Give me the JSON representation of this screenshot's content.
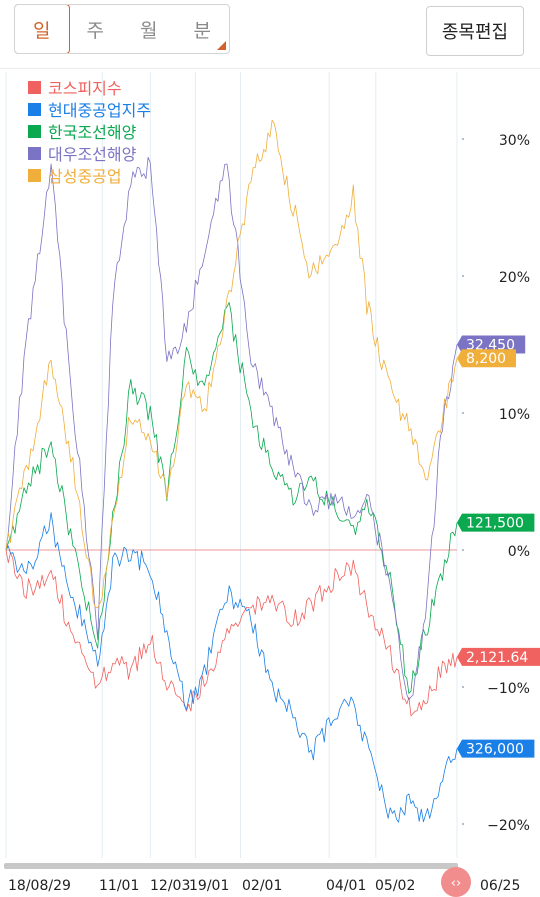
{
  "tabs": [
    {
      "label": "일",
      "active": true
    },
    {
      "label": "주",
      "active": false
    },
    {
      "label": "월",
      "active": false
    },
    {
      "label": "분",
      "active": false,
      "has_corner": true
    }
  ],
  "edit_button_label": "종목편집",
  "legend": [
    {
      "name": "코스피지수",
      "color": "#f0625f"
    },
    {
      "name": "현대중공업지주",
      "color": "#1a7fe6"
    },
    {
      "name": "한국조선해양",
      "color": "#0aa84f"
    },
    {
      "name": "대우조선해양",
      "color": "#7b74c4"
    },
    {
      "name": "삼성중공업",
      "color": "#f0ae3a"
    }
  ],
  "scroll_handle_icon": "chevron-left-right-icon",
  "chart_data": {
    "type": "line",
    "y_unit": "%",
    "y_ticks": [
      "30%",
      "20%",
      "10%",
      "0%",
      "−10%",
      "−20%"
    ],
    "y_tick_values": [
      30,
      20,
      10,
      0,
      -10,
      -20
    ],
    "ylim": [
      -22.5,
      34
    ],
    "x_ticks": [
      {
        "label": "18/08/29",
        "date": "2018-08-29"
      },
      {
        "label": "11/01",
        "date": "2018-11-01"
      },
      {
        "label": "12/03",
        "date": "2018-12-03"
      },
      {
        "label": "19/01",
        "date": "2019-01-02"
      },
      {
        "label": "02/01",
        "date": "2019-02-01"
      },
      {
        "label": "04/01",
        "date": "2019-04-01"
      },
      {
        "label": "05/02",
        "date": "2019-05-02"
      },
      {
        "label": "06/25",
        "date": "2019-06-25"
      }
    ],
    "xlim": [
      "2018-08-29",
      "2019-06-25"
    ],
    "baseline": 0,
    "series": [
      {
        "name": "코스피지수",
        "color": "#f0625f",
        "end_label": "2,121.64",
        "points": [
          [
            "2018-08-29",
            0
          ],
          [
            "2018-09-10",
            -3
          ],
          [
            "2018-09-28",
            -1.5
          ],
          [
            "2018-10-11",
            -6
          ],
          [
            "2018-10-29",
            -10
          ],
          [
            "2018-11-08",
            -8
          ],
          [
            "2018-11-20",
            -9
          ],
          [
            "2018-12-03",
            -6.5
          ],
          [
            "2018-12-14",
            -9.5
          ],
          [
            "2018-12-27",
            -11.5
          ],
          [
            "2019-01-08",
            -9.5
          ],
          [
            "2019-01-23",
            -6.5
          ],
          [
            "2019-02-08",
            -4
          ],
          [
            "2019-02-22",
            -3.5
          ],
          [
            "2019-03-08",
            -5
          ],
          [
            "2019-03-20",
            -4
          ],
          [
            "2019-04-05",
            -2
          ],
          [
            "2019-04-17",
            -1.5
          ],
          [
            "2019-04-26",
            -4
          ],
          [
            "2019-05-13",
            -8
          ],
          [
            "2019-05-24",
            -11.5
          ],
          [
            "2019-06-04",
            -11
          ],
          [
            "2019-06-14",
            -9
          ],
          [
            "2019-06-25",
            -7.8
          ]
        ]
      },
      {
        "name": "현대중공업지주",
        "color": "#1a7fe6",
        "end_label": "326,000",
        "points": [
          [
            "2018-08-29",
            0
          ],
          [
            "2018-09-10",
            -2
          ],
          [
            "2018-09-28",
            2
          ],
          [
            "2018-10-11",
            -3
          ],
          [
            "2018-10-29",
            -8
          ],
          [
            "2018-11-08",
            -1
          ],
          [
            "2018-11-20",
            0
          ],
          [
            "2018-12-03",
            -1.5
          ],
          [
            "2018-12-14",
            -6
          ],
          [
            "2018-12-27",
            -11.5
          ],
          [
            "2019-01-08",
            -9
          ],
          [
            "2019-01-23",
            -3
          ],
          [
            "2019-02-08",
            -5
          ],
          [
            "2019-02-22",
            -10
          ],
          [
            "2019-03-08",
            -12
          ],
          [
            "2019-03-20",
            -15
          ],
          [
            "2019-04-05",
            -12
          ],
          [
            "2019-04-17",
            -11
          ],
          [
            "2019-04-26",
            -14.5
          ],
          [
            "2019-05-13",
            -20
          ],
          [
            "2019-05-24",
            -18.5
          ],
          [
            "2019-06-04",
            -19.5
          ],
          [
            "2019-06-14",
            -17
          ],
          [
            "2019-06-25",
            -14.5
          ]
        ]
      },
      {
        "name": "한국조선해양",
        "color": "#0aa84f",
        "end_label": "121,500",
        "points": [
          [
            "2018-08-29",
            0
          ],
          [
            "2018-09-10",
            4
          ],
          [
            "2018-09-28",
            8
          ],
          [
            "2018-10-11",
            1
          ],
          [
            "2018-10-29",
            -7
          ],
          [
            "2018-11-08",
            2
          ],
          [
            "2018-11-20",
            12
          ],
          [
            "2018-12-03",
            10
          ],
          [
            "2018-12-14",
            4
          ],
          [
            "2018-12-27",
            14
          ],
          [
            "2019-01-08",
            12
          ],
          [
            "2019-01-23",
            18
          ],
          [
            "2019-02-08",
            10
          ],
          [
            "2019-02-22",
            6
          ],
          [
            "2019-03-08",
            4
          ],
          [
            "2019-03-20",
            5
          ],
          [
            "2019-04-05",
            3
          ],
          [
            "2019-04-17",
            1
          ],
          [
            "2019-04-26",
            4
          ],
          [
            "2019-05-13",
            -3
          ],
          [
            "2019-05-24",
            -10.5
          ],
          [
            "2019-06-04",
            -6
          ],
          [
            "2019-06-14",
            -2
          ],
          [
            "2019-06-25",
            2
          ]
        ]
      },
      {
        "name": "대우조선해양",
        "color": "#7b74c4",
        "end_label": "32,450",
        "points": [
          [
            "2018-08-29",
            0
          ],
          [
            "2018-09-10",
            14
          ],
          [
            "2018-09-28",
            28
          ],
          [
            "2018-10-11",
            12
          ],
          [
            "2018-10-29",
            -6
          ],
          [
            "2018-11-08",
            18
          ],
          [
            "2018-11-20",
            27
          ],
          [
            "2018-12-03",
            28
          ],
          [
            "2018-12-14",
            14
          ],
          [
            "2018-12-27",
            16
          ],
          [
            "2019-01-08",
            22
          ],
          [
            "2019-01-23",
            28
          ],
          [
            "2019-02-08",
            14
          ],
          [
            "2019-02-22",
            10
          ],
          [
            "2019-03-08",
            6
          ],
          [
            "2019-03-20",
            3
          ],
          [
            "2019-04-05",
            4
          ],
          [
            "2019-04-17",
            2
          ],
          [
            "2019-04-26",
            4
          ],
          [
            "2019-05-13",
            -3
          ],
          [
            "2019-05-24",
            -11.5
          ],
          [
            "2019-06-04",
            -5
          ],
          [
            "2019-06-14",
            8
          ],
          [
            "2019-06-25",
            15
          ]
        ]
      },
      {
        "name": "삼성중공업",
        "color": "#f0ae3a",
        "end_label": "8,200",
        "points": [
          [
            "2018-08-29",
            0
          ],
          [
            "2018-09-10",
            5
          ],
          [
            "2018-09-28",
            14
          ],
          [
            "2018-10-11",
            7
          ],
          [
            "2018-10-29",
            -5
          ],
          [
            "2018-11-08",
            2
          ],
          [
            "2018-11-20",
            10
          ],
          [
            "2018-12-03",
            8
          ],
          [
            "2018-12-14",
            4
          ],
          [
            "2018-12-27",
            12
          ],
          [
            "2019-01-08",
            10
          ],
          [
            "2019-01-23",
            18
          ],
          [
            "2019-02-08",
            27
          ],
          [
            "2019-02-22",
            31
          ],
          [
            "2019-03-08",
            25
          ],
          [
            "2019-03-20",
            20
          ],
          [
            "2019-04-05",
            22
          ],
          [
            "2019-04-17",
            26
          ],
          [
            "2019-04-26",
            18
          ],
          [
            "2019-05-13",
            11
          ],
          [
            "2019-05-24",
            9
          ],
          [
            "2019-06-04",
            5
          ],
          [
            "2019-06-14",
            9
          ],
          [
            "2019-06-25",
            14
          ]
        ]
      }
    ],
    "grid": true,
    "legend_position": "top-left"
  }
}
